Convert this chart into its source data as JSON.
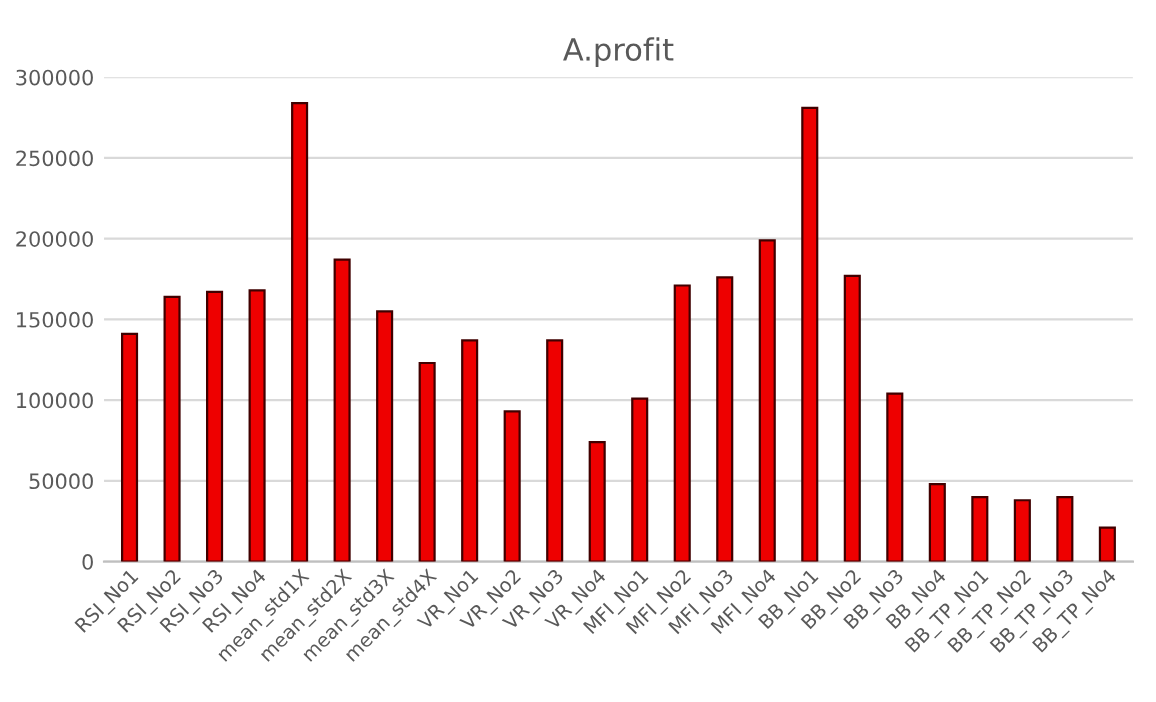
{
  "chart_data": {
    "type": "bar",
    "title": "A.profit",
    "categories": [
      "RSI_No1",
      "RSI_No2",
      "RSI_No3",
      "RSI_No4",
      "mean_std1X",
      "mean_std2X",
      "mean_std3X",
      "mean_std4X",
      "VR_No1",
      "VR_No2",
      "VR_No3",
      "VR_No4",
      "MFI_No1",
      "MFI_No2",
      "MFI_No3",
      "MFI_No4",
      "BB_No1",
      "BB_No2",
      "BB_No3",
      "BB_No4",
      "BB_TP_No1",
      "BB_TP_No2",
      "BB_TP_No3",
      "BB_TP_No4"
    ],
    "values": [
      141000,
      164000,
      167000,
      168000,
      284000,
      187000,
      155000,
      123000,
      137000,
      93000,
      137000,
      74000,
      101000,
      171000,
      176000,
      199000,
      281000,
      177000,
      104000,
      48000,
      40000,
      38000,
      40000,
      21000
    ],
    "color": "#ee0000",
    "ylim": [
      0,
      300000
    ],
    "yticks": [
      0,
      50000,
      100000,
      150000,
      200000,
      250000,
      300000
    ],
    "grid": "y",
    "legend": false
  }
}
